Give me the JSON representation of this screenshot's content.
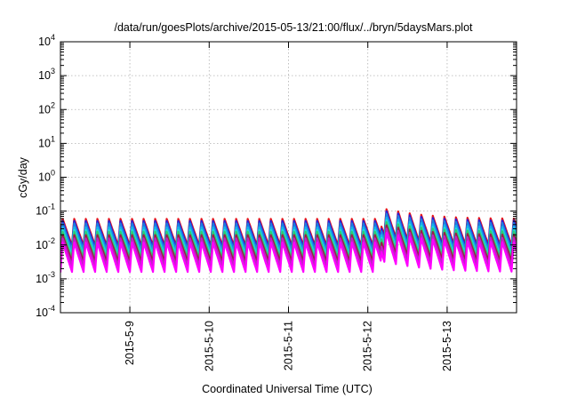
{
  "chart_data": {
    "type": "line",
    "title": "/data/run/goesPlots/archive/2015-05-13/21:00/flux/../bryn/5daysMars.plot",
    "xlabel": "Coordinated Universal Time (UTC)",
    "ylabel": "cGy/day",
    "y_scale": "log",
    "ylim": [
      0.0001,
      10000
    ],
    "y_ticks": [
      {
        "value": 0.0001,
        "base": "10",
        "exp": "-4"
      },
      {
        "value": 0.001,
        "base": "10",
        "exp": "-3"
      },
      {
        "value": 0.01,
        "base": "10",
        "exp": "-2"
      },
      {
        "value": 0.1,
        "base": "10",
        "exp": "-1"
      },
      {
        "value": 1,
        "base": "10",
        "exp": "0"
      },
      {
        "value": 10,
        "base": "10",
        "exp": "1"
      },
      {
        "value": 100,
        "base": "10",
        "exp": "2"
      },
      {
        "value": 1000,
        "base": "10",
        "exp": "3"
      },
      {
        "value": 10000,
        "base": "10",
        "exp": "4"
      }
    ],
    "xlim": [
      "2015-05-08T03:00",
      "2015-05-13T21:00"
    ],
    "x_ticks": [
      {
        "value": "2015-05-09T00:00",
        "label": "2015-5-9"
      },
      {
        "value": "2015-05-10T00:00",
        "label": "2015-5-10"
      },
      {
        "value": "2015-05-11T00:00",
        "label": "2015-5-11"
      },
      {
        "value": "2015-05-12T00:00",
        "label": "2015-5-12"
      },
      {
        "value": "2015-05-13T00:00",
        "label": "2015-5-13"
      }
    ],
    "grid": true,
    "legend": "none",
    "pattern": {
      "sawtooth_period_hours": 3.5,
      "rise_fraction": 0.18,
      "enhanced_event_start": "2015-05-12T04:00",
      "enhanced_event_peak_factor": 2.1,
      "enhanced_event_decay_hours": 10
    },
    "series": [
      {
        "color": "#e8141a",
        "peak": 0.06,
        "floor": 0.0095
      },
      {
        "color": "#2a1fd6",
        "peak": 0.052,
        "floor": 0.0082
      },
      {
        "color": "#1d7fe0",
        "peak": 0.044,
        "floor": 0.0069
      },
      {
        "color": "#17b4e8",
        "peak": 0.034,
        "floor": 0.0054
      },
      {
        "color": "#21e0d8",
        "peak": 0.028,
        "floor": 0.0045
      },
      {
        "color": "#2ecc71",
        "peak": 0.025,
        "floor": 0.004
      },
      {
        "color": "#9c1c4a",
        "peak": 0.02,
        "floor": 0.0032
      },
      {
        "color": "#c020c8",
        "peak": 0.016,
        "floor": 0.0024
      },
      {
        "color": "#ff00ff",
        "peak": 0.012,
        "floor": 0.0016
      }
    ]
  }
}
